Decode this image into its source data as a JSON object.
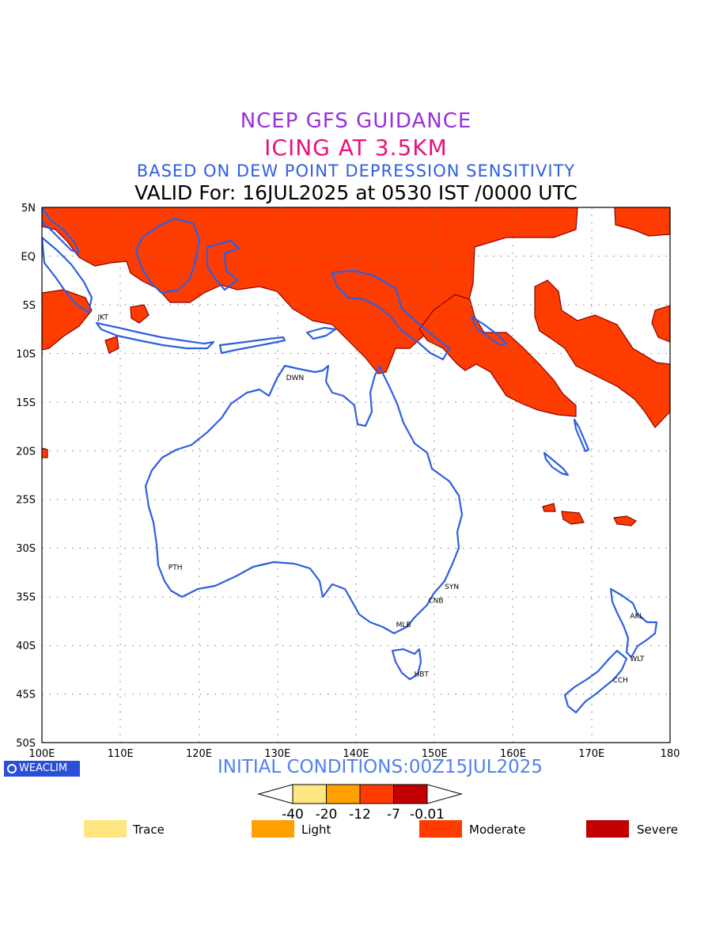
{
  "titles": {
    "line1": "NCEP GFS GUIDANCE",
    "line2": "ICING AT 3.5KM",
    "line3": "BASED ON DEW POINT DEPRESSION SENSITIVITY",
    "line4": "VALID For: 16JUL2025 at 0530 IST /0000 UTC"
  },
  "initial_conditions": "INITIAL CONDITIONS:00Z15JUL2025",
  "brand": "WEACLIM",
  "axes": {
    "lat_labels": [
      "5N",
      "EQ",
      "5S",
      "10S",
      "15S",
      "20S",
      "25S",
      "30S",
      "35S",
      "40S",
      "45S",
      "50S"
    ],
    "lon_labels": [
      "100E",
      "110E",
      "120E",
      "130E",
      "140E",
      "150E",
      "160E",
      "170E",
      "180"
    ]
  },
  "cities": [
    {
      "code": "JKT",
      "lon": 107.0,
      "lat": -6.2
    },
    {
      "code": "DWN",
      "lon": 131.0,
      "lat": -12.4
    },
    {
      "code": "PTH",
      "lon": 116.0,
      "lat": -31.9
    },
    {
      "code": "SYN",
      "lon": 151.2,
      "lat": -33.9
    },
    {
      "code": "CNB",
      "lon": 149.1,
      "lat": -35.3
    },
    {
      "code": "MLB",
      "lon": 145.0,
      "lat": -37.8
    },
    {
      "code": "HBT",
      "lon": 147.3,
      "lat": -42.9
    },
    {
      "code": "AKL",
      "lon": 174.8,
      "lat": -36.9
    },
    {
      "code": "WLT",
      "lon": 174.8,
      "lat": -41.3
    },
    {
      "code": "CCH",
      "lon": 172.6,
      "lat": -43.5
    }
  ],
  "colorbar": {
    "ticks": [
      "-40",
      "-20",
      "-12",
      "-7",
      "-0.01"
    ],
    "colors": [
      "#ffe680",
      "#ffa000",
      "#ff3c00",
      "#c00000"
    ]
  },
  "legend": [
    {
      "label": "Trace",
      "color": "#ffe680"
    },
    {
      "label": "Light",
      "color": "#ffa000"
    },
    {
      "label": "Moderate",
      "color": "#ff3c00"
    },
    {
      "label": "Severe",
      "color": "#c00000"
    }
  ],
  "colors": {
    "coast": "#2f5fe0",
    "icing_fill": "#ff3c00",
    "icing_edge": "#8b0000"
  }
}
